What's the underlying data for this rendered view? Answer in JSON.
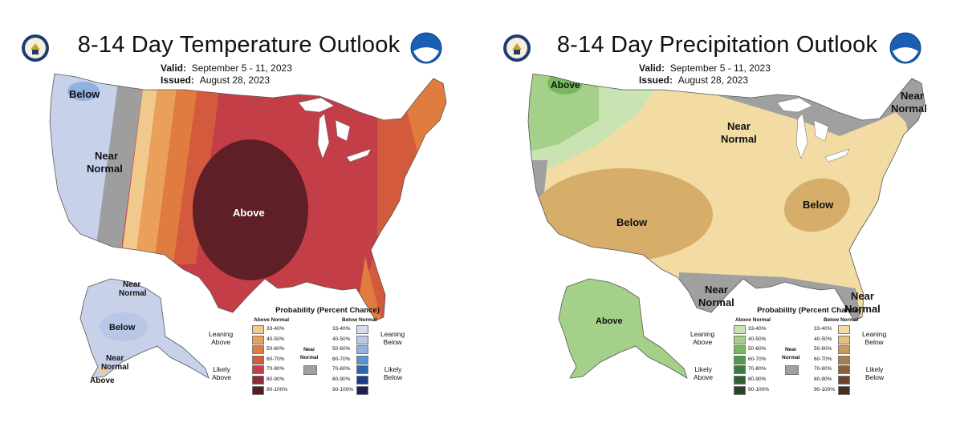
{
  "temp": {
    "title": "8-14 Day Temperature Outlook",
    "valid_label": "Valid:",
    "valid_value": "September 5 - 11, 2023",
    "issued_label": "Issued:",
    "issued_value": "August 28, 2023",
    "map_labels": {
      "below": "Below",
      "near": "Near",
      "normal": "Normal",
      "above": "Above",
      "ak_near": "Near",
      "ak_normal": "Normal",
      "ak_below": "Below",
      "ak_near2": "Near",
      "ak_normal2": "Normal",
      "ak_above": "Above"
    },
    "legend": {
      "title": "Probability (Percent Chance)",
      "above_head": "Above Normal",
      "below_head": "Below Normal",
      "leaning_above": [
        "Leaning",
        "Above"
      ],
      "likely_above": [
        "Likely",
        "Above"
      ],
      "leaning_below": [
        "Leaning",
        "Below"
      ],
      "likely_below": [
        "Likely",
        "Below"
      ],
      "near_normal": [
        "Near",
        "Normal"
      ],
      "above_ranges": [
        "33-40%",
        "40-50%",
        "50-60%",
        "60-70%",
        "70-80%",
        "80-90%",
        "90-100%"
      ],
      "below_ranges": [
        "33-40%",
        "40-50%",
        "50-60%",
        "60-70%",
        "70-80%",
        "80-90%",
        "90-100%"
      ]
    },
    "colors": {
      "above": [
        "#f2c98d",
        "#eaa05a",
        "#e07c3e",
        "#d45a3e",
        "#c43e47",
        "#8f2b36",
        "#5a1c21"
      ],
      "below": [
        "#d7dcee",
        "#b8c7e6",
        "#8fb2de",
        "#5a93cf",
        "#2c64b0",
        "#213b8a",
        "#1b1f55"
      ],
      "near": "#a0a0a0"
    }
  },
  "precip": {
    "title": "8-14 Day Precipitation Outlook",
    "valid_label": "Valid:",
    "valid_value": "September 5 - 11, 2023",
    "issued_label": "Issued:",
    "issued_value": "August 28, 2023",
    "map_labels": {
      "above": "Above",
      "near_ne": "Near",
      "normal_ne": "Normal",
      "near_n": "Near",
      "normal_n": "Normal",
      "below_sw": "Below",
      "below_tn": "Below",
      "near_s": "Near",
      "normal_s": "Normal",
      "near_fl": "Near",
      "normal_fl": "Normal",
      "ak_above": "Above"
    },
    "legend": {
      "title": "Probability (Percent Chance)",
      "above_head": "Above Normal",
      "below_head": "Below Normal",
      "leaning_above": [
        "Leaning",
        "Above"
      ],
      "likely_above": [
        "Likely",
        "Above"
      ],
      "leaning_below": [
        "Leaning",
        "Below"
      ],
      "likely_below": [
        "Likely",
        "Below"
      ],
      "near_normal": [
        "Near",
        "Normal"
      ],
      "above_ranges": [
        "33-40%",
        "40-50%",
        "50-60%",
        "60-70%",
        "70-80%",
        "80-90%",
        "90-100%"
      ],
      "below_ranges": [
        "33-40%",
        "40-50%",
        "50-60%",
        "60-70%",
        "70-80%",
        "80-90%",
        "90-100%"
      ]
    },
    "colors": {
      "above": [
        "#c9e3b3",
        "#a5d08a",
        "#78b860",
        "#4f9a4e",
        "#3b7a3f",
        "#2f5f33",
        "#234526"
      ],
      "below": [
        "#f2dca3",
        "#e4c07c",
        "#c99a5d",
        "#ad7c4c",
        "#8f5f3a",
        "#6b432a",
        "#4a2d1d"
      ],
      "near": "#a0a0a0"
    }
  }
}
